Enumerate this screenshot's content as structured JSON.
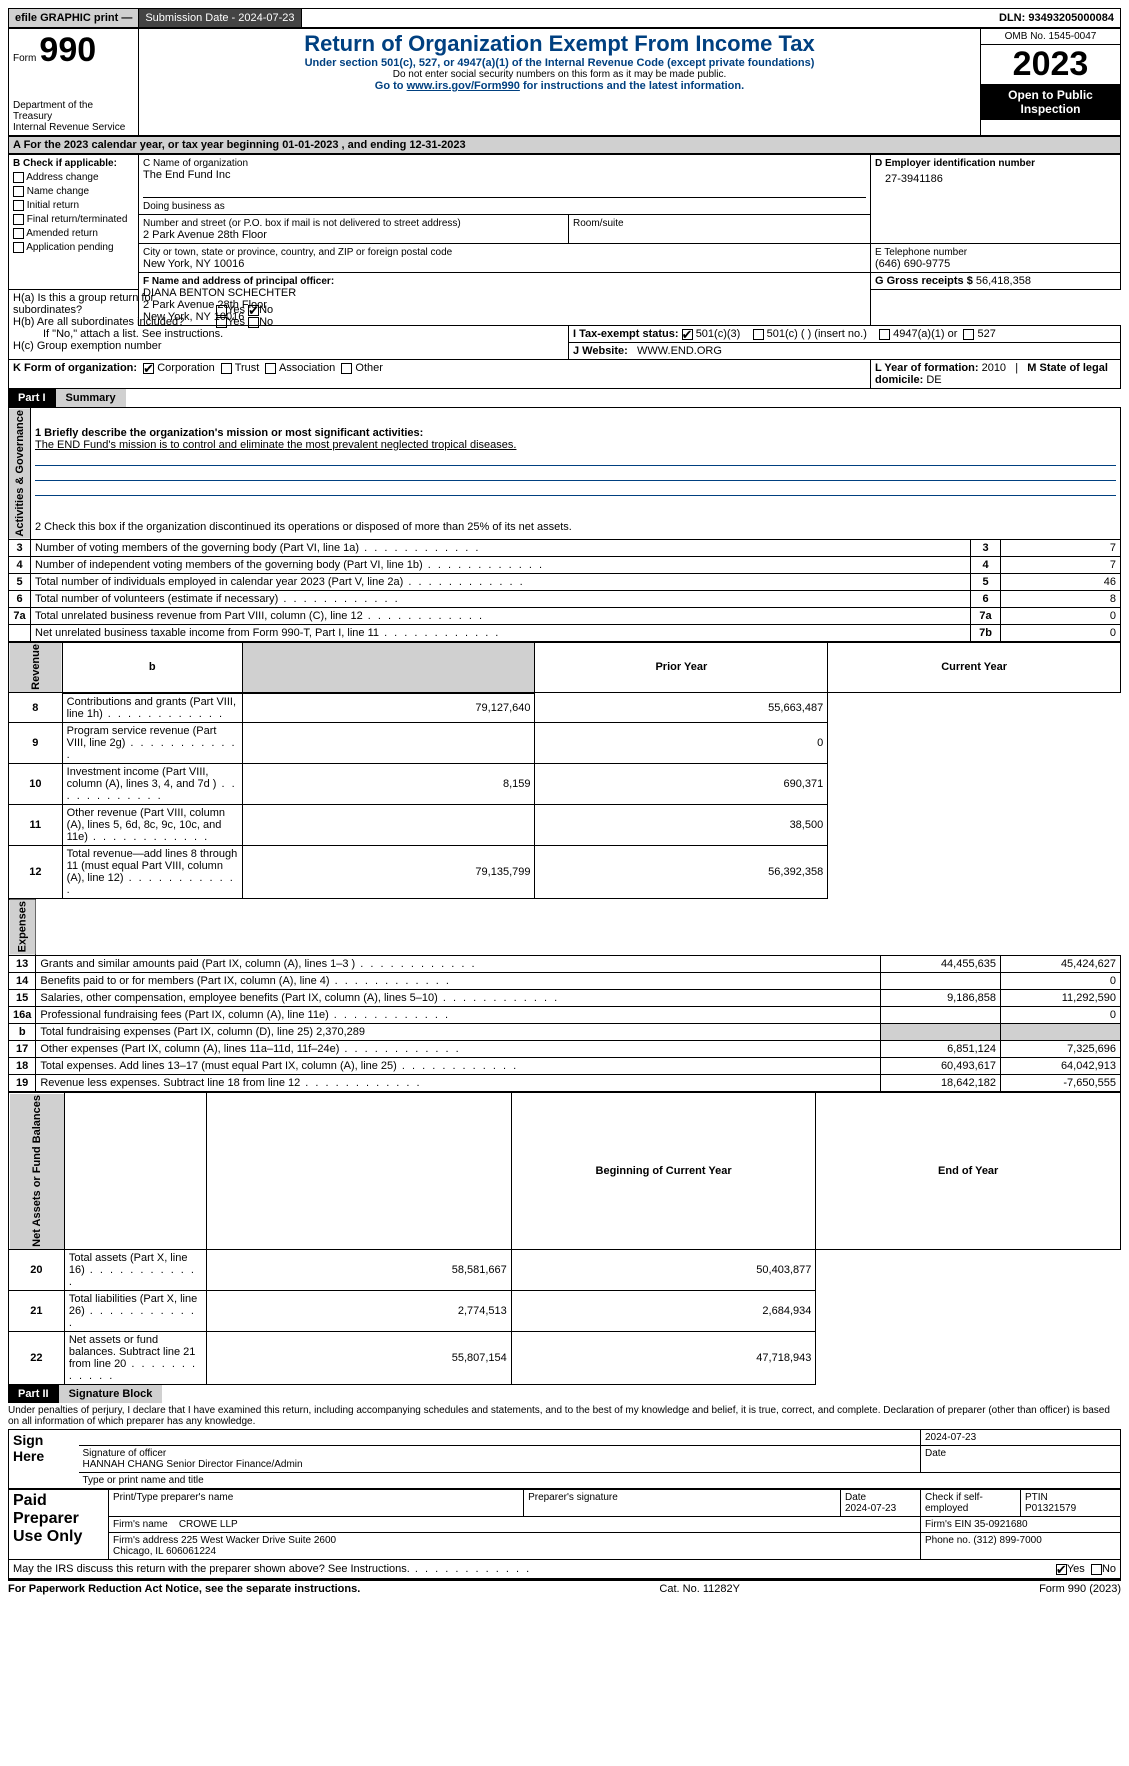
{
  "topbar": {
    "efile": "efile GRAPHIC print —",
    "submission": "Submission Date - 2024-07-23",
    "dln": "DLN: 93493205000084"
  },
  "header": {
    "form_word": "Form",
    "form_num": "990",
    "title": "Return of Organization Exempt From Income Tax",
    "subtitle": "Under section 501(c), 527, or 4947(a)(1) of the Internal Revenue Code (except private foundations)",
    "ssn_note": "Do not enter social security numbers on this form as it may be made public.",
    "goto": "Go to ",
    "goto_link": "www.irs.gov/Form990",
    "goto_tail": " for instructions and the latest information.",
    "dept": "Department of the Treasury\nInternal Revenue Service",
    "omb": "OMB No. 1545-0047",
    "tax_year": "2023",
    "inspect": "Open to Public Inspection"
  },
  "lineA": "A For the 2023 calendar year, or tax year beginning 01-01-2023    , and ending 12-31-2023",
  "sectionB": {
    "label": "B Check if applicable:",
    "opts": [
      "Address change",
      "Name change",
      "Initial return",
      "Final return/terminated",
      "Amended return",
      "Application pending"
    ]
  },
  "sectionC": {
    "name_label": "C Name of organization",
    "name": "The End Fund Inc",
    "dba_label": "Doing business as",
    "dba": "",
    "addr_label": "Number and street (or P.O. box if mail is not delivered to street address)",
    "addr": "2 Park Avenue 28th Floor",
    "room_label": "Room/suite",
    "city_label": "City or town, state or province, country, and ZIP or foreign postal code",
    "city": "New York, NY  10016"
  },
  "sectionD": {
    "label": "D Employer identification number",
    "value": "27-3941186"
  },
  "sectionE": {
    "label": "E Telephone number",
    "value": "(646) 690-9775"
  },
  "sectionG": {
    "label": "G Gross receipts $",
    "value": "56,418,358"
  },
  "sectionF": {
    "label": "F  Name and address of principal officer:",
    "name": "DIANA BENTON SCHECHTER",
    "addr1": "2 Park Avenue 28th Floor",
    "addr2": "New York, NY  10016"
  },
  "sectionH": {
    "a": "H(a)  Is this a group return for subordinates?",
    "a_yes": "Yes",
    "a_no": "No",
    "b": "H(b)  Are all subordinates included?",
    "b_note": "If \"No,\" attach a list. See instructions.",
    "c": "H(c)  Group exemption number"
  },
  "sectionI": {
    "label": "I   Tax-exempt status:",
    "o1": "501(c)(3)",
    "o2": "501(c) (  ) (insert no.)",
    "o3": "4947(a)(1) or",
    "o4": "527"
  },
  "sectionJ": {
    "label": "J   Website:",
    "value": "WWW.END.ORG"
  },
  "sectionK": {
    "label": "K Form of organization:",
    "o1": "Corporation",
    "o2": "Trust",
    "o3": "Association",
    "o4": "Other"
  },
  "sectionL": {
    "label": "L Year of formation:",
    "value": "2010"
  },
  "sectionM": {
    "label": "M State of legal domicile:",
    "value": "DE"
  },
  "part1": {
    "tag": "Part I",
    "title": "Summary",
    "q1_label": "1   Briefly describe the organization's mission or most significant activities:",
    "q1": "The END Fund's mission is to control and eliminate the most prevalent neglected tropical diseases.",
    "q2": "2   Check this box      if the organization discontinued its operations or disposed of more than 25% of its net assets.",
    "gov_label": "Activities & Governance",
    "rev_label": "Revenue",
    "exp_label": "Expenses",
    "net_label": "Net Assets or Fund Balances",
    "rows_gov": [
      {
        "n": "3",
        "d": "Number of voting members of the governing body (Part VI, line 1a)",
        "box": "3",
        "v": "7"
      },
      {
        "n": "4",
        "d": "Number of independent voting members of the governing body (Part VI, line 1b)",
        "box": "4",
        "v": "7"
      },
      {
        "n": "5",
        "d": "Total number of individuals employed in calendar year 2023 (Part V, line 2a)",
        "box": "5",
        "v": "46"
      },
      {
        "n": "6",
        "d": "Total number of volunteers (estimate if necessary)",
        "box": "6",
        "v": "8"
      },
      {
        "n": "7a",
        "d": "Total unrelated business revenue from Part VIII, column (C), line 12",
        "box": "7a",
        "v": "0"
      },
      {
        "n": "",
        "d": "Net unrelated business taxable income from Form 990-T, Part I, line 11",
        "box": "7b",
        "v": "0"
      }
    ],
    "col_prior": "Prior Year",
    "col_curr": "Current Year",
    "rows_rev": [
      {
        "n": "8",
        "d": "Contributions and grants (Part VIII, line 1h)",
        "p": "79,127,640",
        "c": "55,663,487"
      },
      {
        "n": "9",
        "d": "Program service revenue (Part VIII, line 2g)",
        "p": "",
        "c": "0"
      },
      {
        "n": "10",
        "d": "Investment income (Part VIII, column (A), lines 3, 4, and 7d )",
        "p": "8,159",
        "c": "690,371"
      },
      {
        "n": "11",
        "d": "Other revenue (Part VIII, column (A), lines 5, 6d, 8c, 9c, 10c, and 11e)",
        "p": "",
        "c": "38,500"
      },
      {
        "n": "12",
        "d": "Total revenue—add lines 8 through 11 (must equal Part VIII, column (A), line 12)",
        "p": "79,135,799",
        "c": "56,392,358"
      }
    ],
    "rows_exp": [
      {
        "n": "13",
        "d": "Grants and similar amounts paid (Part IX, column (A), lines 1–3 )",
        "p": "44,455,635",
        "c": "45,424,627"
      },
      {
        "n": "14",
        "d": "Benefits paid to or for members (Part IX, column (A), line 4)",
        "p": "",
        "c": "0"
      },
      {
        "n": "15",
        "d": "Salaries, other compensation, employee benefits (Part IX, column (A), lines 5–10)",
        "p": "9,186,858",
        "c": "11,292,590"
      },
      {
        "n": "16a",
        "d": "Professional fundraising fees (Part IX, column (A), line 11e)",
        "p": "",
        "c": "0"
      }
    ],
    "row16b": {
      "n": "b",
      "d": "Total fundraising expenses (Part IX, column (D), line 25) 2,370,289"
    },
    "rows_exp2": [
      {
        "n": "17",
        "d": "Other expenses (Part IX, column (A), lines 11a–11d, 11f–24e)",
        "p": "6,851,124",
        "c": "7,325,696"
      },
      {
        "n": "18",
        "d": "Total expenses. Add lines 13–17 (must equal Part IX, column (A), line 25)",
        "p": "60,493,617",
        "c": "64,042,913"
      },
      {
        "n": "19",
        "d": "Revenue less expenses. Subtract line 18 from line 12",
        "p": "18,642,182",
        "c": "-7,650,555"
      }
    ],
    "col_beg": "Beginning of Current Year",
    "col_end": "End of Year",
    "rows_net": [
      {
        "n": "20",
        "d": "Total assets (Part X, line 16)",
        "p": "58,581,667",
        "c": "50,403,877"
      },
      {
        "n": "21",
        "d": "Total liabilities (Part X, line 26)",
        "p": "2,774,513",
        "c": "2,684,934"
      },
      {
        "n": "22",
        "d": "Net assets or fund balances. Subtract line 21 from line 20",
        "p": "55,807,154",
        "c": "47,718,943"
      }
    ]
  },
  "part2": {
    "tag": "Part II",
    "title": "Signature Block",
    "perjury": "Under penalties of perjury, I declare that I have examined this return, including accompanying schedules and statements, and to the best of my knowledge and belief, it is true, correct, and complete. Declaration of preparer (other than officer) is based on all information of which preparer has any knowledge.",
    "sign_here": "Sign Here",
    "sig_officer": "Signature of officer",
    "sig_date": "2024-07-23",
    "officer_name": "HANNAH CHANG  Senior Director Finance/Admin",
    "type_name": "Type or print name and title",
    "paid": "Paid Preparer Use Only",
    "col_print": "Print/Type preparer's name",
    "col_prepsig": "Preparer's signature",
    "col_date": "Date",
    "date_val": "2024-07-23",
    "col_self": "Check        if self-employed",
    "col_ptin": "PTIN",
    "ptin": "P01321579",
    "firm_name_l": "Firm's name",
    "firm_name": "CROWE LLP",
    "firm_ein_l": "Firm's EIN",
    "firm_ein": "35-0921680",
    "firm_addr_l": "Firm's address",
    "firm_addr": "225 West Wacker Drive Suite 2600\nChicago, IL  606061224",
    "phone_l": "Phone no.",
    "phone": "(312) 899-7000",
    "discuss": "May the IRS discuss this return with the preparer shown above? See Instructions.",
    "yes": "Yes",
    "no": "No"
  },
  "footer": {
    "paperwork": "For Paperwork Reduction Act Notice, see the separate instructions.",
    "cat": "Cat. No. 11282Y",
    "formref": "Form 990 (2023)"
  }
}
